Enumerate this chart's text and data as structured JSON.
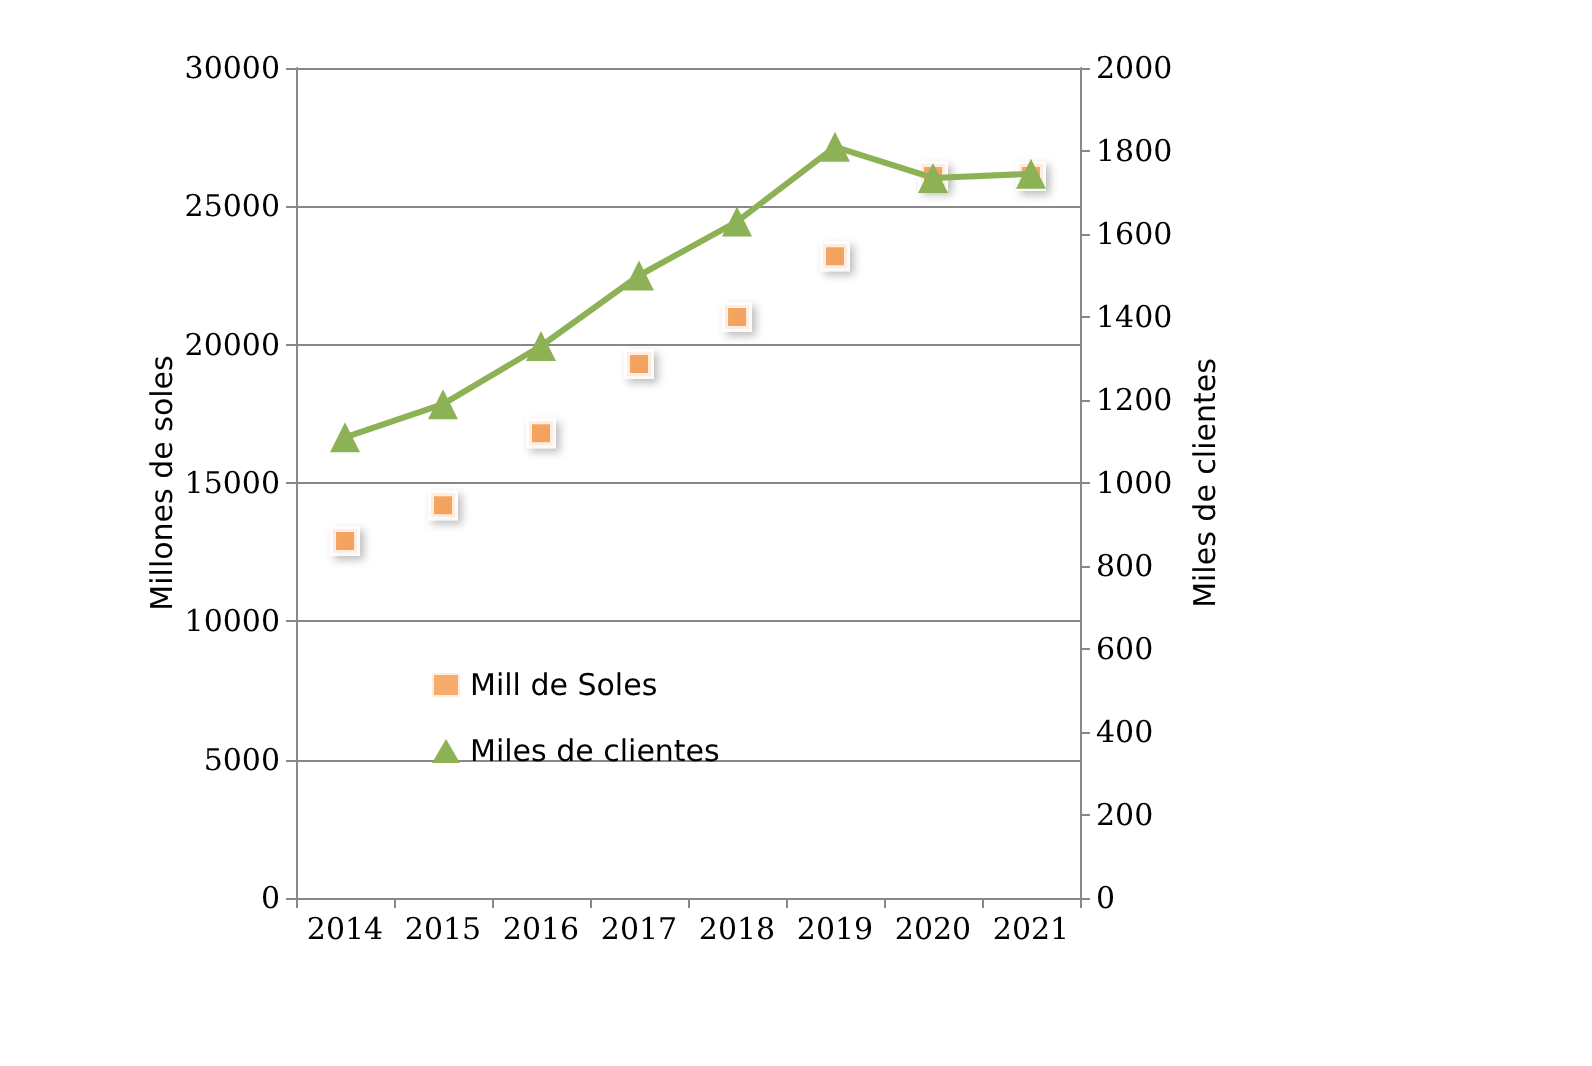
{
  "chart_data": {
    "type": "line",
    "categories": [
      "2014",
      "2015",
      "2016",
      "2017",
      "2018",
      "2019",
      "2020",
      "2021"
    ],
    "ylabel": "Millones de soles",
    "y2label": "Miles de clientes",
    "ylim": [
      0,
      30000
    ],
    "yticks": [
      0,
      5000,
      10000,
      15000,
      20000,
      25000,
      30000
    ],
    "y2lim": [
      0,
      2000
    ],
    "y2ticks": [
      0,
      200,
      400,
      600,
      800,
      1000,
      1200,
      1400,
      1600,
      1800,
      2000
    ],
    "grid": "y",
    "legend": "bottom left",
    "series": [
      {
        "name": "Mill de Soles",
        "type": "scatter",
        "marker": "square",
        "color": "#f79646",
        "values": [
          12900,
          14200,
          16800,
          19300,
          21000,
          23200,
          26100,
          26100
        ]
      },
      {
        "name": "Miles de clientes",
        "marker": "triangle",
        "axis": "y2",
        "color": "#8db255",
        "values": [
          1110,
          1190,
          1330,
          1500,
          1630,
          1810,
          1735,
          1745
        ]
      }
    ]
  }
}
